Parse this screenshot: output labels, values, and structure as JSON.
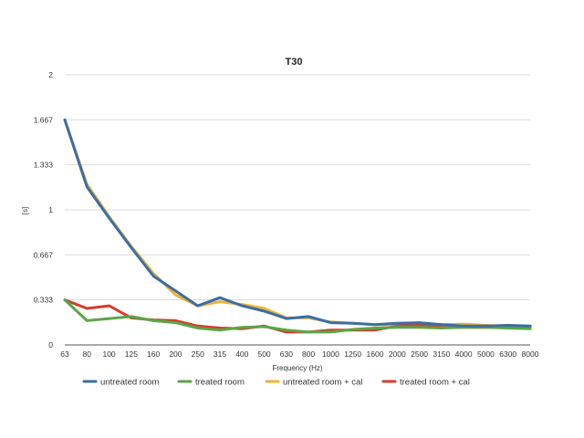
{
  "chart_data": {
    "type": "line",
    "title": "T30",
    "xlabel": "Frequency (Hz)",
    "ylabel": "[s]",
    "ylim": [
      0,
      2
    ],
    "y_ticks": [
      "0",
      "0.333",
      "0.667",
      "1",
      "1.333",
      "1.667",
      "2"
    ],
    "categories": [
      "63",
      "80",
      "100",
      "125",
      "160",
      "200",
      "250",
      "315",
      "400",
      "500",
      "630",
      "800",
      "1000",
      "1250",
      "1600",
      "2000",
      "2500",
      "3150",
      "4000",
      "5000",
      "6300",
      "8000"
    ],
    "grid": true,
    "legend_position": "bottom",
    "series": [
      {
        "name": "untreated room",
        "color": "#3a6ea5",
        "values": [
          1.667,
          1.17,
          0.94,
          0.72,
          0.51,
          0.4,
          0.29,
          0.35,
          0.29,
          0.25,
          0.195,
          0.21,
          0.165,
          0.16,
          0.15,
          0.16,
          0.165,
          0.15,
          0.14,
          0.14,
          0.145,
          0.14
        ]
      },
      {
        "name": "treated room",
        "color": "#5aa646",
        "values": [
          0.333,
          0.18,
          0.195,
          0.21,
          0.18,
          0.165,
          0.125,
          0.11,
          0.13,
          0.135,
          0.11,
          0.095,
          0.095,
          0.115,
          0.125,
          0.13,
          0.13,
          0.125,
          0.13,
          0.13,
          0.125,
          0.12
        ]
      },
      {
        "name": "untreated room + cal",
        "color": "#f0b238",
        "values": [
          1.667,
          1.19,
          0.95,
          0.73,
          0.53,
          0.37,
          0.29,
          0.32,
          0.3,
          0.27,
          0.2,
          0.2,
          0.17,
          0.16,
          0.15,
          0.15,
          0.155,
          0.15,
          0.155,
          0.145,
          0.135,
          0.13
        ]
      },
      {
        "name": "treated room + cal",
        "color": "#d63b2f",
        "values": [
          0.333,
          0.27,
          0.29,
          0.2,
          0.185,
          0.18,
          0.14,
          0.125,
          0.12,
          0.14,
          0.095,
          0.095,
          0.11,
          0.11,
          0.11,
          0.14,
          0.145,
          0.13,
          0.13,
          0.13,
          0.13,
          0.125
        ]
      }
    ]
  }
}
